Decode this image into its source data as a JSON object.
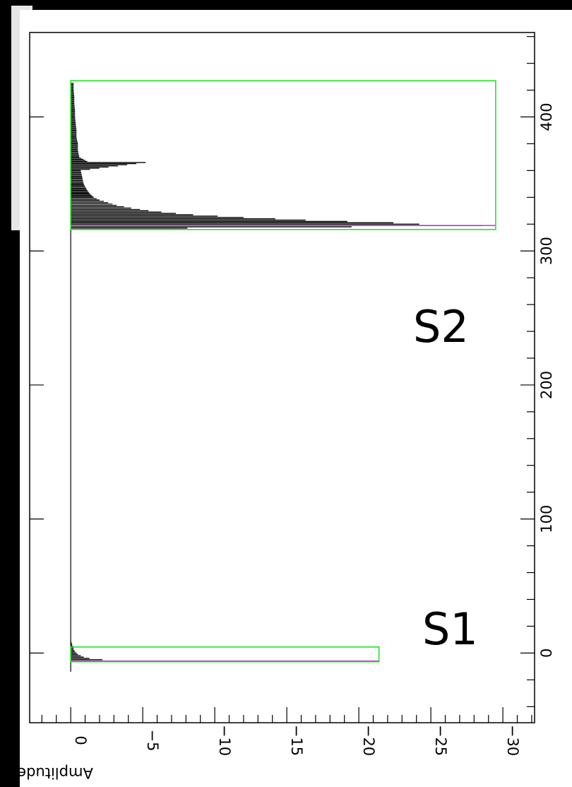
{
  "chart_data": {
    "type": "bar",
    "orientation": "rotated 90 degrees (time axis vertical, amplitude horizontal)",
    "ylabel": "Amplitude",
    "xlabel": "",
    "time_axis": {
      "range": [
        -52,
        463
      ],
      "major_ticks": [
        0,
        100,
        200,
        300,
        400
      ],
      "tick_labels": [
        "0",
        "100",
        "200",
        "300",
        "400"
      ],
      "minor_step": 20
    },
    "amplitude_axis": {
      "range": [
        2.85,
        -32.2
      ],
      "major_ticks": [
        0,
        -5,
        -10,
        -15,
        -20,
        -25,
        -30
      ],
      "tick_labels": [
        "0",
        "−5",
        "−10",
        "−15",
        "−20",
        "−25",
        "−30"
      ],
      "minor_step": 1
    },
    "grid": false,
    "peaks": [
      {
        "name": "S1",
        "box": {
          "time": [
            -6.5,
            4.5
          ],
          "amplitude": [
            0,
            -21.4
          ]
        },
        "samples": {
          "time": [
            -5,
            -4,
            -3,
            -2,
            -1,
            0,
            1,
            2,
            3,
            4,
            5,
            6,
            7,
            8
          ],
          "amplitude": [
            -2.2,
            -1.3,
            -0.9,
            -0.7,
            -0.5,
            -0.4,
            -0.3,
            -0.25,
            -0.2,
            -0.2,
            -0.15,
            -0.1,
            -0.1,
            -0.05
          ]
        },
        "marker_time": -6
      },
      {
        "name": "S2",
        "box": {
          "time": [
            316,
            427
          ],
          "amplitude": [
            0,
            -29.5
          ]
        },
        "samples": {
          "time": [
            317,
            318,
            319,
            320,
            321,
            322,
            323,
            324,
            325,
            326,
            327,
            328,
            329,
            330,
            332,
            334,
            336,
            338,
            340,
            343,
            346,
            350,
            355,
            360,
            366,
            370,
            375,
            380,
            385,
            390,
            395,
            400,
            405,
            410,
            415,
            420,
            425
          ],
          "amplitude": [
            -8.1,
            -19.5,
            -28.6,
            -24.2,
            -22.4,
            -19.2,
            -16.3,
            -14.2,
            -12.0,
            -10.2,
            -8.5,
            -7.3,
            -6.3,
            -5.4,
            -4.2,
            -3.2,
            -2.6,
            -2.0,
            -1.6,
            -1.3,
            -1.1,
            -0.9,
            -0.8,
            -0.7,
            -5.2,
            -0.6,
            -0.5,
            -0.5,
            -0.4,
            -0.4,
            -0.35,
            -0.3,
            -0.3,
            -0.25,
            -0.25,
            -0.2,
            -0.2
          ]
        },
        "marker_time": 319
      }
    ],
    "annotations": [
      "S1",
      "S2"
    ],
    "colors": {
      "box": "#22e322",
      "marker": "#bb22cc",
      "signal": "#000000",
      "background": "#000000"
    }
  }
}
